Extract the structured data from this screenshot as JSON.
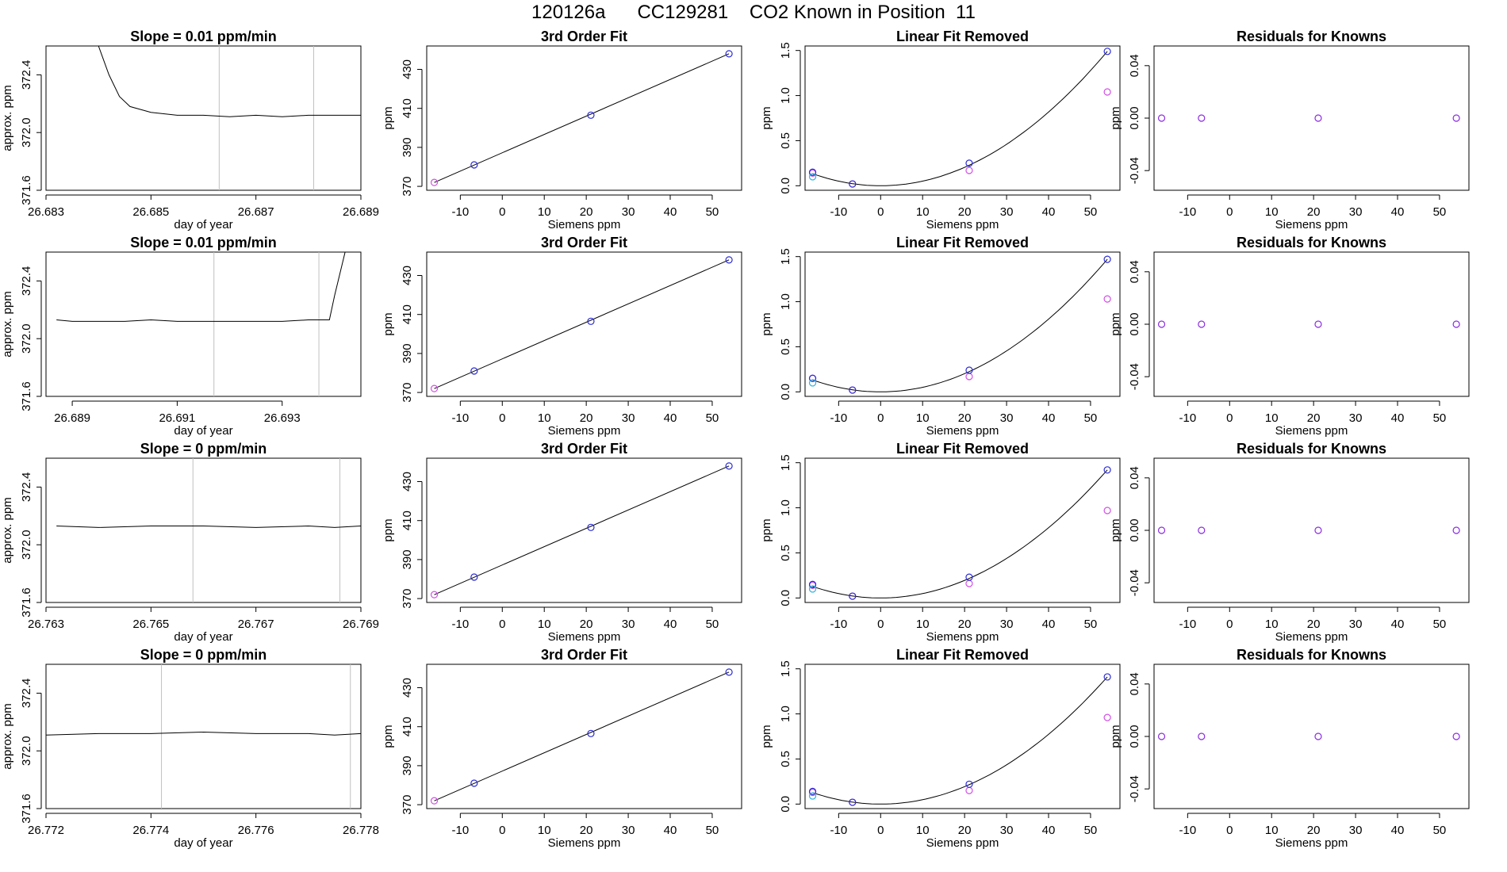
{
  "title": "120126a      CC129281    CO2 Known in Position  11",
  "chart_data": {
    "type": "scatter",
    "rows": [
      {
        "timeseries": {
          "type": "line",
          "title": "Slope =  0.01  ppm/min",
          "xlabel": "day of year",
          "ylabel": "approx. ppm",
          "xlim": [
            26.683,
            26.689
          ],
          "xticks": [
            "26.683",
            "26.685",
            "26.687",
            "26.689"
          ],
          "ylim": [
            371.6,
            372.6
          ],
          "yticks": [
            "371.6",
            "372.0",
            "372.4"
          ],
          "vlines": [
            26.6863,
            26.6881
          ],
          "trace": [
            [
              26.684,
              372.9
            ],
            [
              26.6842,
              372.4
            ],
            [
              26.6844,
              372.25
            ],
            [
              26.6846,
              372.18
            ],
            [
              26.685,
              372.14
            ],
            [
              26.6855,
              372.12
            ],
            [
              26.686,
              372.12
            ],
            [
              26.6865,
              372.11
            ],
            [
              26.687,
              372.12
            ],
            [
              26.6875,
              372.11
            ],
            [
              26.688,
              372.12
            ],
            [
              26.6885,
              372.12
            ],
            [
              26.6892,
              372.12
            ]
          ]
        }
      },
      {
        "timeseries": {
          "type": "line",
          "title": "Slope =  0.01  ppm/min",
          "xlabel": "day of year",
          "ylabel": "approx. ppm",
          "xlim": [
            26.6885,
            26.6945
          ],
          "xticks": [
            "26.689",
            "26.691",
            "26.693"
          ],
          "ylim": [
            371.6,
            372.6
          ],
          "yticks": [
            "371.6",
            "372.0",
            "372.4"
          ],
          "vlines": [
            26.6917,
            26.6937
          ],
          "trace": [
            [
              26.6887,
              372.13
            ],
            [
              26.689,
              372.12
            ],
            [
              26.6895,
              372.12
            ],
            [
              26.69,
              372.12
            ],
            [
              26.6905,
              372.13
            ],
            [
              26.691,
              372.12
            ],
            [
              26.6915,
              372.12
            ],
            [
              26.692,
              372.12
            ],
            [
              26.6925,
              372.12
            ],
            [
              26.693,
              372.12
            ],
            [
              26.6935,
              372.13
            ],
            [
              26.6939,
              372.13
            ],
            [
              26.694,
              372.3
            ],
            [
              26.6942,
              372.75
            ]
          ]
        }
      },
      {
        "timeseries": {
          "type": "line",
          "title": "Slope =  0  ppm/min",
          "xlabel": "day of year",
          "ylabel": "approx. ppm",
          "xlim": [
            26.763,
            26.769
          ],
          "xticks": [
            "26.763",
            "26.765",
            "26.767",
            "26.769"
          ],
          "ylim": [
            371.6,
            372.6
          ],
          "yticks": [
            "371.6",
            "372.0",
            "372.4"
          ],
          "vlines": [
            26.7658,
            26.7686
          ],
          "trace": [
            [
              26.7632,
              372.13
            ],
            [
              26.764,
              372.12
            ],
            [
              26.765,
              372.13
            ],
            [
              26.766,
              372.13
            ],
            [
              26.767,
              372.12
            ],
            [
              26.768,
              372.13
            ],
            [
              26.7685,
              372.12
            ],
            [
              26.769,
              372.13
            ]
          ]
        }
      },
      {
        "timeseries": {
          "type": "line",
          "title": "Slope =  0  ppm/min",
          "xlabel": "day of year",
          "ylabel": "approx. ppm",
          "xlim": [
            26.772,
            26.778
          ],
          "xticks": [
            "26.772",
            "26.774",
            "26.776",
            "26.778"
          ],
          "ylim": [
            371.6,
            372.6
          ],
          "yticks": [
            "371.6",
            "372.0",
            "372.4"
          ],
          "vlines": [
            26.7742,
            26.7778
          ],
          "trace": [
            [
              26.772,
              372.11
            ],
            [
              26.773,
              372.12
            ],
            [
              26.774,
              372.12
            ],
            [
              26.775,
              372.13
            ],
            [
              26.776,
              372.12
            ],
            [
              26.777,
              372.12
            ],
            [
              26.7775,
              372.11
            ],
            [
              26.778,
              372.12
            ]
          ]
        }
      }
    ],
    "fit": {
      "title": "3rd Order Fit",
      "xlabel": "Siemens ppm",
      "ylabel": "ppm",
      "xlim": [
        -18,
        57
      ],
      "xticks": [
        "-10",
        "0",
        "10",
        "20",
        "30",
        "40",
        "50"
      ],
      "ylim": [
        368,
        442
      ],
      "yticks": [
        "370",
        "390",
        "410",
        "430"
      ],
      "points": [
        [
          -16.2,
          372
        ],
        [
          -6.7,
          381
        ],
        [
          21.1,
          406.5
        ],
        [
          54,
          438
        ]
      ]
    },
    "linear_removed": {
      "title": "Linear Fit Removed",
      "xlabel": "Siemens ppm",
      "ylabel": "ppm",
      "xlim": [
        -18,
        57
      ],
      "xticks": [
        "-10",
        "0",
        "10",
        "20",
        "30",
        "40",
        "50"
      ],
      "ylim": [
        -0.05,
        1.55
      ],
      "yticks": [
        "0.0",
        "0.5",
        "1.0",
        "1.5"
      ],
      "rows_blue": [
        [
          [
            -16.2,
            0.15
          ],
          [
            -6.7,
            0.02
          ],
          [
            21.1,
            0.25
          ],
          [
            54,
            1.49
          ]
        ],
        [
          [
            -16.2,
            0.15
          ],
          [
            -6.7,
            0.02
          ],
          [
            21.1,
            0.24
          ],
          [
            54,
            1.47
          ]
        ],
        [
          [
            -16.2,
            0.15
          ],
          [
            -6.7,
            0.02
          ],
          [
            21.1,
            0.23
          ],
          [
            54,
            1.42
          ]
        ],
        [
          [
            -16.2,
            0.14
          ],
          [
            -6.7,
            0.02
          ],
          [
            21.1,
            0.22
          ],
          [
            54,
            1.41
          ]
        ]
      ],
      "rows_magenta": [
        [
          [
            -16.2,
            0.14
          ],
          [
            -6.7,
            0.02
          ],
          [
            21.1,
            0.17
          ],
          [
            54,
            1.04
          ]
        ],
        [
          [
            -16.2,
            0.15
          ],
          [
            -6.7,
            0.02
          ],
          [
            21.1,
            0.17
          ],
          [
            54,
            1.03
          ]
        ],
        [
          [
            -16.2,
            0.14
          ],
          [
            -6.7,
            0.02
          ],
          [
            21.1,
            0.16
          ],
          [
            54,
            0.97
          ]
        ],
        [
          [
            -16.2,
            0.13
          ],
          [
            -6.7,
            0.02
          ],
          [
            21.1,
            0.15
          ],
          [
            54,
            0.96
          ]
        ]
      ],
      "rows_cyan": [
        [
          -16.2,
          0.1
        ],
        [
          -16.2,
          0.1
        ],
        [
          -16.2,
          0.1
        ],
        [
          -16.2,
          0.09
        ]
      ]
    },
    "residuals": {
      "title": "Residuals for Knowns",
      "xlabel": "Siemens ppm",
      "ylabel": "ppm",
      "xlim": [
        -18,
        57
      ],
      "xticks": [
        "-10",
        "0",
        "10",
        "20",
        "30",
        "40",
        "50"
      ],
      "ylim": [
        -0.055,
        0.055
      ],
      "yticks": [
        "-0.04",
        "0.00",
        "0.04"
      ],
      "points": [
        [
          -16.2,
          0
        ],
        [
          -6.7,
          0
        ],
        [
          21.1,
          0
        ],
        [
          54,
          0
        ]
      ]
    },
    "colors": {
      "blue": "#2b2bd6",
      "magenta": "#d24ee6",
      "cyan": "#2bb3e0",
      "purple": "#8a2be2",
      "vline": "#c0c0c0"
    }
  }
}
